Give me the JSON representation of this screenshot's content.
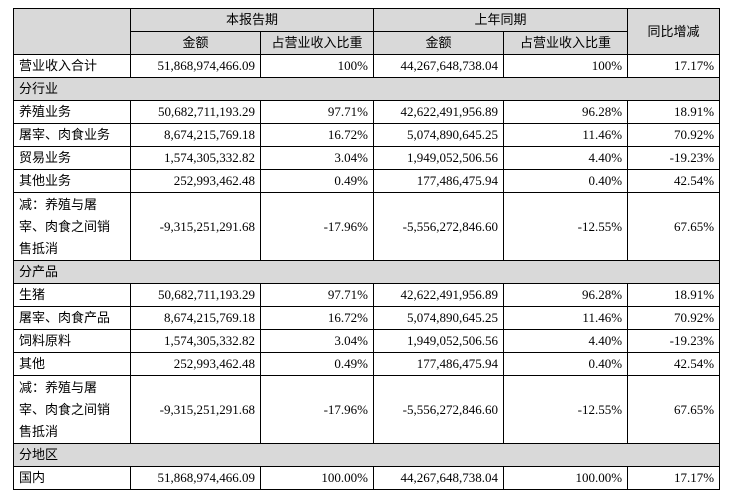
{
  "table": {
    "header": {
      "current": "本报告期",
      "previous": "上年同期",
      "change": "同比增减",
      "sub": [
        "金额",
        "占营业收入比重",
        "金额",
        "占营业收入比重"
      ]
    },
    "rows": [
      {
        "label": "营业收入合计",
        "values": [
          "51,868,974,466.09",
          "100%",
          "44,267,648,738.04",
          "100%",
          "17.17%"
        ]
      },
      {
        "section": "分行业"
      },
      {
        "label": "养殖业务",
        "values": [
          "50,682,711,193.29",
          "97.71%",
          "42,622,491,956.89",
          "96.28%",
          "18.91%"
        ]
      },
      {
        "label": "屠宰、肉食业务",
        "values": [
          "8,674,215,769.18",
          "16.72%",
          "5,074,890,645.25",
          "11.46%",
          "70.92%"
        ]
      },
      {
        "label": "贸易业务",
        "values": [
          "1,574,305,332.82",
          "3.04%",
          "1,949,052,506.56",
          "4.40%",
          "-19.23%"
        ]
      },
      {
        "label": "其他业务",
        "values": [
          "252,993,462.48",
          "0.49%",
          "177,486,475.94",
          "0.40%",
          "42.54%"
        ]
      },
      {
        "label_lines": [
          "减：养殖与屠",
          "宰、肉食之间销",
          "售抵消"
        ],
        "values": [
          "-9,315,251,291.68",
          "-17.96%",
          "-5,556,272,846.60",
          "-12.55%",
          "67.65%"
        ]
      },
      {
        "section": "分产品"
      },
      {
        "label": "生猪",
        "values": [
          "50,682,711,193.29",
          "97.71%",
          "42,622,491,956.89",
          "96.28%",
          "18.91%"
        ]
      },
      {
        "label": "屠宰、肉食产品",
        "values": [
          "8,674,215,769.18",
          "16.72%",
          "5,074,890,645.25",
          "11.46%",
          "70.92%"
        ]
      },
      {
        "label": "饲料原料",
        "values": [
          "1,574,305,332.82",
          "3.04%",
          "1,949,052,506.56",
          "4.40%",
          "-19.23%"
        ]
      },
      {
        "label": "其他",
        "values": [
          "252,993,462.48",
          "0.49%",
          "177,486,475.94",
          "0.40%",
          "42.54%"
        ]
      },
      {
        "label_lines": [
          "减：养殖与屠",
          "宰、肉食之间销",
          "售抵消"
        ],
        "values": [
          "-9,315,251,291.68",
          "-17.96%",
          "-5,556,272,846.60",
          "-12.55%",
          "67.65%"
        ]
      },
      {
        "section": "分地区"
      },
      {
        "label": "国内",
        "values": [
          "51,868,974,466.09",
          "100.00%",
          "44,267,648,738.04",
          "100.00%",
          "17.17%"
        ]
      }
    ]
  }
}
